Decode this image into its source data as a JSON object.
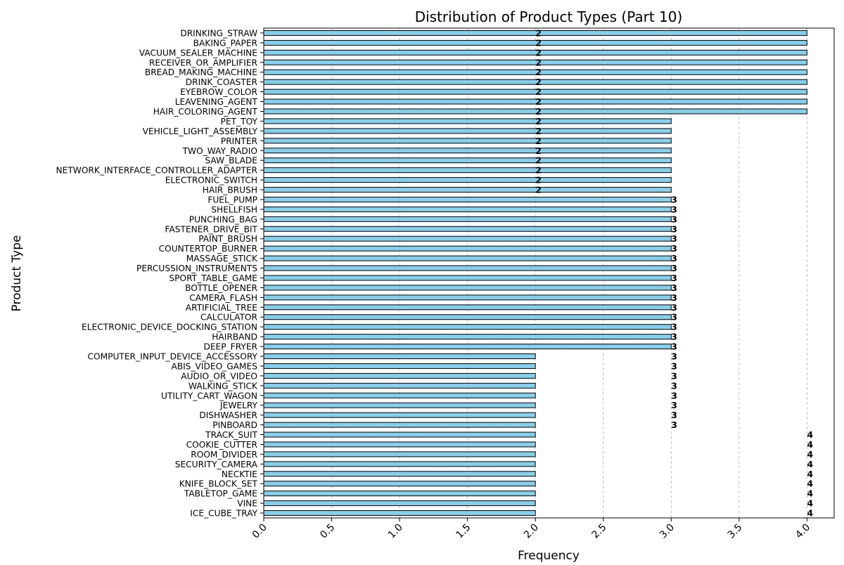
{
  "chart_data": {
    "type": "bar",
    "orientation": "horizontal",
    "title": "Distribution of Product Types (Part 10)",
    "xlabel": "Frequency",
    "ylabel": "Product Type",
    "xlim": [
      0,
      4.2
    ],
    "x_ticks": [
      "0.0",
      "0.5",
      "1.0",
      "1.5",
      "2.0",
      "2.5",
      "3.0",
      "3.5",
      "4.0"
    ],
    "grid": "x dashed",
    "bar_color": "#87ceeb",
    "bar_edge_color": "#000000",
    "categories": [
      "DRINKING_STRAW",
      "BAKING_PAPER",
      "VACUUM_SEALER_MACHINE",
      "RECEIVER_OR_AMPLIFIER",
      "BREAD_MAKING_MACHINE",
      "DRINK_COASTER",
      "EYEBROW_COLOR",
      "LEAVENING_AGENT",
      "HAIR_COLORING_AGENT",
      "PET_TOY",
      "VEHICLE_LIGHT_ASSEMBLY",
      "PRINTER",
      "TWO_WAY_RADIO",
      "SAW_BLADE",
      "NETWORK_INTERFACE_CONTROLLER_ADAPTER",
      "ELECTRONIC_SWITCH",
      "HAIR_BRUSH",
      "FUEL_PUMP",
      "SHELLFISH",
      "PUNCHING_BAG",
      "FASTENER_DRIVE_BIT",
      "PAINT_BRUSH",
      "COUNTERTOP_BURNER",
      "MASSAGE_STICK",
      "PERCUSSION_INSTRUMENTS",
      "SPORT_TABLE_GAME",
      "BOTTLE_OPENER",
      "CAMERA_FLASH",
      "ARTIFICIAL_TREE",
      "CALCULATOR",
      "ELECTRONIC_DEVICE_DOCKING_STATION",
      "HAIRBAND",
      "DEEP_FRYER",
      "COMPUTER_INPUT_DEVICE_ACCESSORY",
      "ABIS_VIDEO_GAMES",
      "AUDIO_OR_VIDEO",
      "WALKING_STICK",
      "UTILITY_CART_WAGON",
      "JEWELRY",
      "DISHWASHER",
      "PINBOARD",
      "TRACK_SUIT",
      "COOKIE_CUTTER",
      "ROOM_DIVIDER",
      "SECURITY_CAMERA",
      "NECKTIE",
      "KNIFE_BLOCK_SET",
      "TABLETOP_GAME",
      "VINE",
      "ICE_CUBE_TRAY"
    ],
    "values": [
      4,
      4,
      4,
      4,
      4,
      4,
      4,
      4,
      4,
      3,
      3,
      3,
      3,
      3,
      3,
      3,
      3,
      3,
      3,
      3,
      3,
      3,
      3,
      3,
      3,
      3,
      3,
      3,
      3,
      3,
      3,
      3,
      3,
      2,
      2,
      2,
      2,
      2,
      2,
      2,
      2,
      2,
      2,
      2,
      2,
      2,
      2,
      2,
      2,
      2
    ],
    "data_labels": [
      "2",
      "2",
      "2",
      "2",
      "2",
      "2",
      "2",
      "2",
      "2",
      "2",
      "2",
      "2",
      "2",
      "2",
      "2",
      "2",
      "2",
      "3",
      "3",
      "3",
      "3",
      "3",
      "3",
      "3",
      "3",
      "3",
      "3",
      "3",
      "3",
      "3",
      "3",
      "3",
      "3",
      "3",
      "3",
      "3",
      "3",
      "3",
      "3",
      "3",
      "3",
      "4",
      "4",
      "4",
      "4",
      "4",
      "4",
      "4",
      "4",
      "4"
    ],
    "data_label_positions": [
      2,
      2,
      2,
      2,
      2,
      2,
      2,
      2,
      2,
      2,
      2,
      2,
      2,
      2,
      2,
      2,
      2,
      3,
      3,
      3,
      3,
      3,
      3,
      3,
      3,
      3,
      3,
      3,
      3,
      3,
      3,
      3,
      3,
      3,
      3,
      3,
      3,
      3,
      3,
      3,
      3,
      4,
      4,
      4,
      4,
      4,
      4,
      4,
      4,
      4
    ]
  }
}
